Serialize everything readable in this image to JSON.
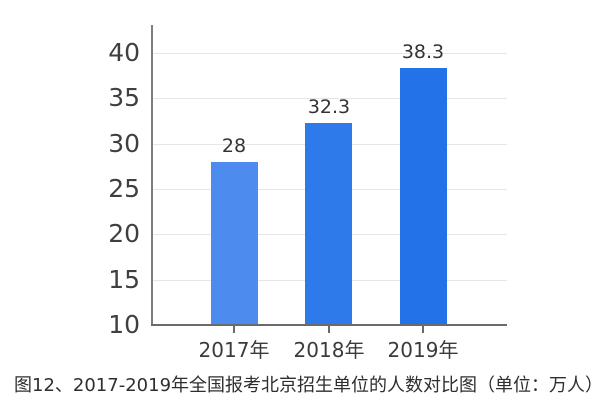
{
  "caption": "图12、2017-2019年全国报考北京招生单位的人数对比图（单位：万人）",
  "chart_data": {
    "type": "bar",
    "categories": [
      "2017年",
      "2018年",
      "2019年"
    ],
    "values": [
      28,
      32.3,
      38.3
    ],
    "data_labels": [
      "28",
      "32.3",
      "38.3"
    ],
    "bar_colors": [
      "#4d8cee",
      "#2e7aea",
      "#2273e8"
    ],
    "title": "",
    "xlabel": "",
    "ylabel": "",
    "ylim": [
      10,
      40
    ],
    "yticks": [
      10,
      15,
      20,
      25,
      30,
      35,
      40
    ],
    "grid": "horizontal-only",
    "legend": "none",
    "gridline_color": "#e6e6e6",
    "axis_color": "#6a6a6a",
    "text_color": "#3b3b3b"
  }
}
